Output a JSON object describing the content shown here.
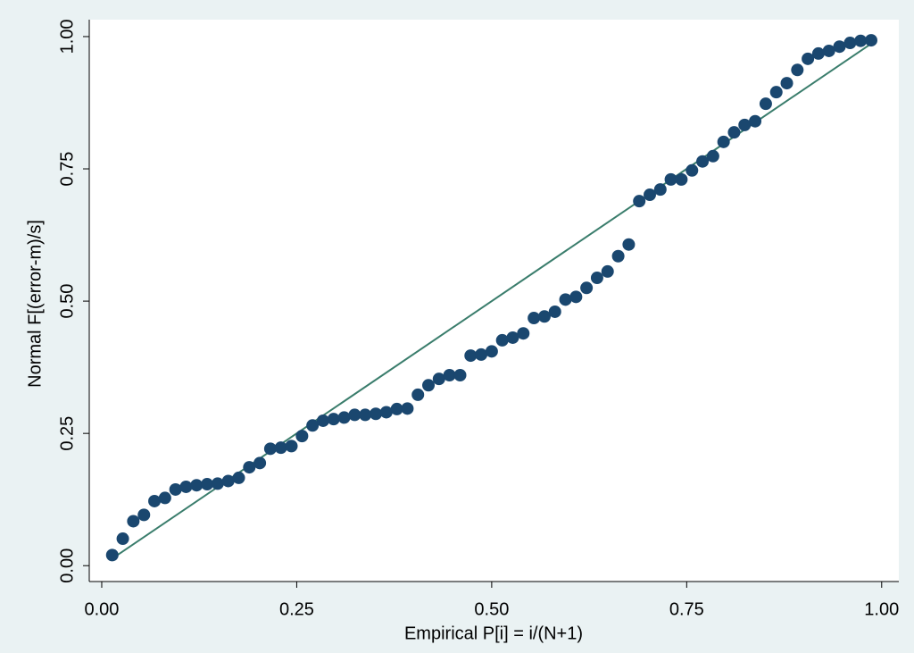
{
  "chart_data": {
    "type": "scatter",
    "x_label": "Empirical P[i] = i/(N+1)",
    "y_label": "Normal F[(error-m)/s]",
    "x": [
      0.0135,
      0.027,
      0.0405,
      0.0541,
      0.0676,
      0.0811,
      0.0946,
      0.1081,
      0.1216,
      0.1351,
      0.1486,
      0.1622,
      0.1757,
      0.1892,
      0.2027,
      0.2162,
      0.2297,
      0.2432,
      0.2568,
      0.2703,
      0.2838,
      0.2973,
      0.3108,
      0.3243,
      0.3378,
      0.3514,
      0.3649,
      0.3784,
      0.3919,
      0.4054,
      0.4189,
      0.4324,
      0.4459,
      0.4595,
      0.473,
      0.4865,
      0.5,
      0.5135,
      0.527,
      0.5405,
      0.5541,
      0.5676,
      0.5811,
      0.5946,
      0.6081,
      0.6216,
      0.6351,
      0.6486,
      0.6622,
      0.6757,
      0.6892,
      0.7027,
      0.7162,
      0.7297,
      0.7432,
      0.7568,
      0.7703,
      0.7838,
      0.7973,
      0.8108,
      0.8243,
      0.8378,
      0.8514,
      0.8649,
      0.8784,
      0.8919,
      0.9054,
      0.9189,
      0.9324,
      0.9459,
      0.9595,
      0.973,
      0.9865
    ],
    "series": [
      {
        "color": "#1a476f",
        "values": [
          0.02,
          0.051,
          0.084,
          0.096,
          0.122,
          0.128,
          0.144,
          0.149,
          0.152,
          0.154,
          0.155,
          0.16,
          0.166,
          0.186,
          0.194,
          0.221,
          0.223,
          0.226,
          0.245,
          0.265,
          0.274,
          0.277,
          0.28,
          0.285,
          0.285,
          0.287,
          0.29,
          0.296,
          0.297,
          0.323,
          0.341,
          0.353,
          0.36,
          0.36,
          0.397,
          0.399,
          0.405,
          0.426,
          0.431,
          0.439,
          0.468,
          0.471,
          0.48,
          0.503,
          0.508,
          0.525,
          0.544,
          0.556,
          0.585,
          0.607,
          0.689,
          0.701,
          0.711,
          0.73,
          0.73,
          0.747,
          0.764,
          0.774,
          0.801,
          0.819,
          0.833,
          0.84,
          0.873,
          0.895,
          0.912,
          0.937,
          0.958,
          0.968,
          0.973,
          0.981,
          0.988,
          0.992,
          0.993
        ]
      }
    ],
    "reference_line": {
      "color": "#3a7d6c",
      "x": [
        0.0135,
        0.9865
      ],
      "values": [
        0.0135,
        0.9865
      ]
    },
    "xlim": [
      -0.016,
      1.022
    ],
    "ylim": [
      -0.03,
      1.032
    ],
    "xticks": [
      {
        "value": 0,
        "label": "0.00"
      },
      {
        "value": 0.25,
        "label": "0.25"
      },
      {
        "value": 0.5,
        "label": "0.50"
      },
      {
        "value": 0.75,
        "label": "0.75"
      },
      {
        "value": 1,
        "label": "1.00"
      }
    ],
    "yticks": [
      {
        "value": 0,
        "label": "0.00"
      },
      {
        "value": 0.25,
        "label": "0.25"
      },
      {
        "value": 0.5,
        "label": "0.50"
      },
      {
        "value": 0.75,
        "label": "0.75"
      },
      {
        "value": 1,
        "label": "1.00"
      }
    ]
  }
}
